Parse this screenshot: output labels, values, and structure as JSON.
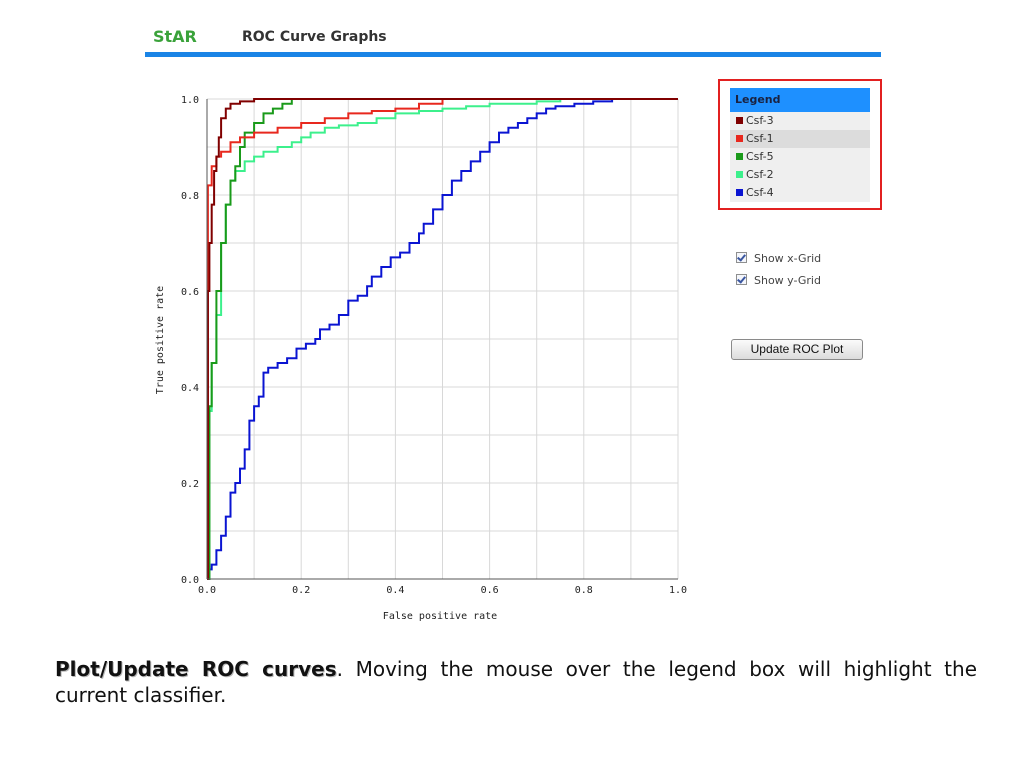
{
  "header": {
    "brand": "StAR",
    "title": "ROC Curve Graphs"
  },
  "legend": {
    "title": "Legend",
    "items": [
      {
        "label": "Csf-3",
        "color": "#800000"
      },
      {
        "label": "Csf-1",
        "color": "#e8281e"
      },
      {
        "label": "Csf-5",
        "color": "#1a9a1a"
      },
      {
        "label": "Csf-2",
        "color": "#3cf08c"
      },
      {
        "label": "Csf-4",
        "color": "#0a14d2"
      }
    ],
    "highlighted": "Csf-1"
  },
  "options": {
    "x_grid": {
      "label": "Show x-Grid",
      "checked": true
    },
    "y_grid": {
      "label": "Show y-Grid",
      "checked": true
    }
  },
  "update_button": {
    "label": "Update ROC Plot"
  },
  "caption": {
    "lead": "Plot/Update ROC curves",
    "text": ". Moving the mouse over the legend box will highlight the current classifier."
  },
  "chart_data": {
    "type": "line",
    "xlabel": "False positive rate",
    "ylabel": "True positive rate",
    "xlim": [
      0,
      1
    ],
    "ylim": [
      0,
      1
    ],
    "x_ticks": [
      "0.0",
      "0.2",
      "0.4",
      "0.6",
      "0.8",
      "1.0"
    ],
    "y_ticks": [
      "0.0",
      "0.2",
      "0.4",
      "0.6",
      "0.8",
      "1.0"
    ],
    "grid": true,
    "series": [
      {
        "name": "Csf-4",
        "color": "#0a14d2",
        "points": [
          [
            0,
            0
          ],
          [
            0.005,
            0.02
          ],
          [
            0.01,
            0.03
          ],
          [
            0.02,
            0.06
          ],
          [
            0.03,
            0.09
          ],
          [
            0.04,
            0.13
          ],
          [
            0.05,
            0.18
          ],
          [
            0.06,
            0.2
          ],
          [
            0.07,
            0.23
          ],
          [
            0.08,
            0.27
          ],
          [
            0.09,
            0.33
          ],
          [
            0.1,
            0.36
          ],
          [
            0.11,
            0.38
          ],
          [
            0.12,
            0.43
          ],
          [
            0.13,
            0.44
          ],
          [
            0.15,
            0.45
          ],
          [
            0.17,
            0.46
          ],
          [
            0.19,
            0.48
          ],
          [
            0.21,
            0.49
          ],
          [
            0.23,
            0.5
          ],
          [
            0.24,
            0.52
          ],
          [
            0.26,
            0.53
          ],
          [
            0.28,
            0.55
          ],
          [
            0.3,
            0.58
          ],
          [
            0.32,
            0.59
          ],
          [
            0.34,
            0.61
          ],
          [
            0.35,
            0.63
          ],
          [
            0.37,
            0.65
          ],
          [
            0.39,
            0.67
          ],
          [
            0.41,
            0.68
          ],
          [
            0.43,
            0.7
          ],
          [
            0.45,
            0.72
          ],
          [
            0.46,
            0.74
          ],
          [
            0.48,
            0.77
          ],
          [
            0.5,
            0.8
          ],
          [
            0.52,
            0.83
          ],
          [
            0.54,
            0.85
          ],
          [
            0.56,
            0.87
          ],
          [
            0.58,
            0.89
          ],
          [
            0.6,
            0.91
          ],
          [
            0.62,
            0.93
          ],
          [
            0.64,
            0.94
          ],
          [
            0.66,
            0.95
          ],
          [
            0.68,
            0.96
          ],
          [
            0.7,
            0.97
          ],
          [
            0.72,
            0.98
          ],
          [
            0.74,
            0.985
          ],
          [
            0.78,
            0.99
          ],
          [
            0.82,
            0.995
          ],
          [
            0.86,
            1.0
          ],
          [
            1.0,
            1.0
          ]
        ]
      },
      {
        "name": "Csf-2",
        "color": "#3cf08c",
        "points": [
          [
            0,
            0
          ],
          [
            0.005,
            0.35
          ],
          [
            0.01,
            0.45
          ],
          [
            0.02,
            0.55
          ],
          [
            0.03,
            0.7
          ],
          [
            0.04,
            0.78
          ],
          [
            0.05,
            0.83
          ],
          [
            0.06,
            0.85
          ],
          [
            0.08,
            0.87
          ],
          [
            0.1,
            0.88
          ],
          [
            0.12,
            0.89
          ],
          [
            0.15,
            0.9
          ],
          [
            0.18,
            0.91
          ],
          [
            0.2,
            0.92
          ],
          [
            0.22,
            0.93
          ],
          [
            0.25,
            0.94
          ],
          [
            0.28,
            0.945
          ],
          [
            0.32,
            0.95
          ],
          [
            0.36,
            0.96
          ],
          [
            0.4,
            0.97
          ],
          [
            0.45,
            0.975
          ],
          [
            0.5,
            0.98
          ],
          [
            0.55,
            0.985
          ],
          [
            0.6,
            0.99
          ],
          [
            0.65,
            0.99
          ],
          [
            0.7,
            0.995
          ],
          [
            0.75,
            1.0
          ],
          [
            1.0,
            1.0
          ]
        ]
      },
      {
        "name": "Csf-5",
        "color": "#1a9a1a",
        "points": [
          [
            0,
            0
          ],
          [
            0.005,
            0.36
          ],
          [
            0.01,
            0.45
          ],
          [
            0.02,
            0.6
          ],
          [
            0.03,
            0.7
          ],
          [
            0.04,
            0.78
          ],
          [
            0.05,
            0.83
          ],
          [
            0.06,
            0.86
          ],
          [
            0.07,
            0.9
          ],
          [
            0.08,
            0.93
          ],
          [
            0.1,
            0.95
          ],
          [
            0.12,
            0.97
          ],
          [
            0.14,
            0.98
          ],
          [
            0.16,
            0.99
          ],
          [
            0.18,
            1.0
          ],
          [
            1.0,
            1.0
          ]
        ]
      },
      {
        "name": "Csf-1",
        "color": "#e8281e",
        "points": [
          [
            0,
            0
          ],
          [
            0.002,
            0.82
          ],
          [
            0.01,
            0.86
          ],
          [
            0.02,
            0.88
          ],
          [
            0.03,
            0.89
          ],
          [
            0.05,
            0.91
          ],
          [
            0.07,
            0.92
          ],
          [
            0.1,
            0.93
          ],
          [
            0.15,
            0.94
          ],
          [
            0.2,
            0.95
          ],
          [
            0.25,
            0.96
          ],
          [
            0.3,
            0.97
          ],
          [
            0.35,
            0.975
          ],
          [
            0.4,
            0.98
          ],
          [
            0.45,
            0.99
          ],
          [
            0.5,
            1.0
          ],
          [
            1.0,
            1.0
          ]
        ]
      },
      {
        "name": "Csf-3",
        "color": "#800000",
        "points": [
          [
            0,
            0
          ],
          [
            0.002,
            0.6
          ],
          [
            0.005,
            0.7
          ],
          [
            0.01,
            0.78
          ],
          [
            0.015,
            0.85
          ],
          [
            0.02,
            0.88
          ],
          [
            0.025,
            0.92
          ],
          [
            0.03,
            0.96
          ],
          [
            0.04,
            0.98
          ],
          [
            0.05,
            0.99
          ],
          [
            0.07,
            0.995
          ],
          [
            0.1,
            1.0
          ],
          [
            1.0,
            1.0
          ]
        ]
      }
    ]
  }
}
